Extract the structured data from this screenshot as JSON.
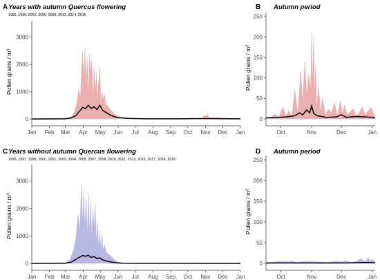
{
  "chart_data": [
    {
      "panel": "A",
      "type": "area",
      "title": "Years with autumn Quercus flowering",
      "subtitle": "1996, 1999, 2002, 2006, 2009, 2012, 2014, 2015",
      "ylabel": "Pollen grains / m³",
      "xlabel": "",
      "xlim": [
        1,
        366
      ],
      "ylim": [
        -150,
        3600
      ],
      "yticks": [
        0,
        1000,
        2000,
        3000
      ],
      "xticks": [
        {
          "label": "Jan",
          "x": 1
        },
        {
          "label": "Feb",
          "x": 32
        },
        {
          "label": "Mar",
          "x": 60
        },
        {
          "label": "Apr",
          "x": 91
        },
        {
          "label": "May",
          "x": 121
        },
        {
          "label": "Jun",
          "x": 152
        },
        {
          "label": "Jul",
          "x": 182
        },
        {
          "label": "Aug",
          "x": 213
        },
        {
          "label": "Sep",
          "x": 244
        },
        {
          "label": "Oct",
          "x": 274
        },
        {
          "label": "Nov",
          "x": 305
        },
        {
          "label": "Dec",
          "x": 335
        },
        {
          "label": "Jan",
          "x": 366
        }
      ],
      "grid": false,
      "series": [
        {
          "role": "range",
          "color": "#e8a6a6",
          "x": [
            1,
            65,
            72,
            76,
            80,
            83,
            86,
            88,
            90,
            92,
            94,
            96,
            98,
            100,
            102,
            104,
            106,
            108,
            110,
            112,
            114,
            116,
            118,
            120,
            122,
            124,
            126,
            128,
            131,
            135,
            140,
            145,
            152,
            160,
            300,
            302,
            305,
            308,
            311,
            366
          ],
          "y": [
            10,
            40,
            120,
            300,
            600,
            1100,
            800,
            1800,
            2500,
            1500,
            2600,
            1200,
            2300,
            900,
            2400,
            1600,
            2200,
            800,
            1900,
            1000,
            1700,
            700,
            1400,
            1900,
            500,
            1000,
            700,
            900,
            500,
            450,
            300,
            200,
            100,
            20,
            20,
            150,
            80,
            180,
            50,
            10
          ]
        },
        {
          "role": "mean",
          "color": "#000000",
          "x": [
            1,
            60,
            70,
            78,
            85,
            90,
            95,
            100,
            105,
            110,
            115,
            120,
            125,
            130,
            140,
            150,
            170,
            200,
            250,
            300,
            366
          ],
          "y": [
            0,
            5,
            40,
            120,
            300,
            420,
            380,
            500,
            380,
            450,
            350,
            500,
            320,
            250,
            120,
            60,
            20,
            5,
            5,
            15,
            5
          ]
        }
      ]
    },
    {
      "panel": "B",
      "type": "area",
      "title": "Autumn period",
      "ylabel": "Pollen grains / m³",
      "xlabel": "",
      "xlim": [
        259,
        369
      ],
      "ylim": [
        -10,
        260
      ],
      "yticks": [
        0,
        50,
        100,
        150,
        200,
        250
      ],
      "xticks": [
        {
          "label": "Oct",
          "x": 274
        },
        {
          "label": "Nov",
          "x": 305
        },
        {
          "label": "Dec",
          "x": 335
        },
        {
          "label": "Jan",
          "x": 366
        }
      ],
      "grid": false,
      "series": [
        {
          "role": "range",
          "color": "#e8a6a6",
          "x": [
            259,
            265,
            268,
            272,
            276,
            279,
            282,
            285,
            288,
            291,
            294,
            296,
            298,
            300,
            302,
            304,
            305,
            306,
            307,
            308,
            309,
            310,
            312,
            314,
            316,
            319,
            322,
            325,
            328,
            331,
            334,
            336,
            338,
            341,
            344,
            347,
            350,
            353,
            356,
            359,
            362,
            365,
            369
          ],
          "y": [
            2,
            5,
            12,
            4,
            30,
            8,
            20,
            6,
            70,
            15,
            120,
            40,
            140,
            60,
            110,
            70,
            215,
            90,
            200,
            60,
            130,
            30,
            80,
            20,
            50,
            10,
            25,
            15,
            40,
            8,
            45,
            12,
            35,
            10,
            18,
            25,
            8,
            15,
            30,
            10,
            20,
            28,
            5
          ]
        },
        {
          "role": "mean",
          "color": "#000000",
          "x": [
            259,
            270,
            280,
            288,
            293,
            296,
            300,
            303,
            305,
            307,
            310,
            315,
            320,
            330,
            335,
            340,
            350,
            360,
            369
          ],
          "y": [
            3,
            4,
            5,
            8,
            15,
            10,
            22,
            15,
            32,
            14,
            8,
            6,
            4,
            5,
            10,
            4,
            6,
            5,
            3
          ]
        }
      ]
    },
    {
      "panel": "C",
      "type": "area",
      "title": "Years without autumn Quercus flowering",
      "subtitle": "1995, 1997, 1998, 2000, 2001, 2003, 2004, 2005, 2007, 2008, 2010, 2011, 2013, 2016, 2017, 2018, 2019",
      "ylabel": "Pollen grains / m³",
      "xlabel": "",
      "xlim": [
        1,
        366
      ],
      "ylim": [
        -150,
        3600
      ],
      "yticks": [
        0,
        1000,
        2000,
        3000
      ],
      "xticks": [
        {
          "label": "Jan",
          "x": 1
        },
        {
          "label": "Feb",
          "x": 32
        },
        {
          "label": "Mar",
          "x": 60
        },
        {
          "label": "Apr",
          "x": 91
        },
        {
          "label": "May",
          "x": 121
        },
        {
          "label": "Jun",
          "x": 152
        },
        {
          "label": "Jul",
          "x": 182
        },
        {
          "label": "Aug",
          "x": 213
        },
        {
          "label": "Sep",
          "x": 244
        },
        {
          "label": "Oct",
          "x": 274
        },
        {
          "label": "Nov",
          "x": 305
        },
        {
          "label": "Dec",
          "x": 335
        },
        {
          "label": "Jan",
          "x": 366
        }
      ],
      "grid": false,
      "series": [
        {
          "role": "range",
          "color": "#b0b0e0",
          "x": [
            1,
            60,
            68,
            74,
            78,
            82,
            85,
            88,
            90,
            92,
            94,
            96,
            98,
            100,
            102,
            104,
            106,
            108,
            110,
            112,
            114,
            116,
            118,
            120,
            122,
            124,
            126,
            128,
            131,
            135,
            140,
            145,
            150,
            155,
            160,
            366
          ],
          "y": [
            10,
            30,
            150,
            500,
            900,
            1800,
            1200,
            2900,
            1500,
            2700,
            1300,
            2400,
            1000,
            2600,
            1100,
            2300,
            900,
            2000,
            1300,
            2200,
            800,
            1500,
            600,
            1200,
            500,
            1100,
            450,
            700,
            400,
            350,
            250,
            150,
            80,
            40,
            15,
            5
          ]
        },
        {
          "role": "mean",
          "color": "#000000",
          "x": [
            1,
            60,
            70,
            78,
            85,
            90,
            95,
            100,
            105,
            110,
            115,
            120,
            125,
            130,
            140,
            150,
            160,
            200,
            366
          ],
          "y": [
            0,
            5,
            50,
            150,
            230,
            290,
            260,
            300,
            220,
            250,
            180,
            200,
            130,
            100,
            50,
            20,
            8,
            3,
            2
          ]
        }
      ]
    },
    {
      "panel": "D",
      "type": "area",
      "title": "Autumn period",
      "ylabel": "Pollen grains / m³",
      "xlabel": "",
      "xlim": [
        259,
        369
      ],
      "ylim": [
        -10,
        260
      ],
      "yticks": [
        0,
        50,
        100,
        150,
        200,
        250
      ],
      "xticks": [
        {
          "label": "Oct",
          "x": 274
        },
        {
          "label": "Nov",
          "x": 305
        },
        {
          "label": "Dec",
          "x": 335
        },
        {
          "label": "Jan",
          "x": 366
        }
      ],
      "grid": false,
      "series": [
        {
          "role": "range",
          "color": "#b0b0e0",
          "x": [
            259,
            265,
            272,
            280,
            285,
            290,
            300,
            310,
            320,
            330,
            335,
            340,
            345,
            350,
            355,
            358,
            360,
            362,
            364,
            366,
            369
          ],
          "y": [
            2,
            3,
            5,
            4,
            6,
            3,
            5,
            4,
            3,
            5,
            4,
            6,
            3,
            5,
            12,
            4,
            8,
            14,
            6,
            10,
            4
          ]
        },
        {
          "role": "mean",
          "color": "#000000",
          "x": [
            259,
            280,
            300,
            320,
            340,
            355,
            360,
            365,
            369
          ],
          "y": [
            1,
            1,
            1,
            1,
            1,
            2,
            2,
            2,
            1
          ]
        }
      ]
    }
  ]
}
